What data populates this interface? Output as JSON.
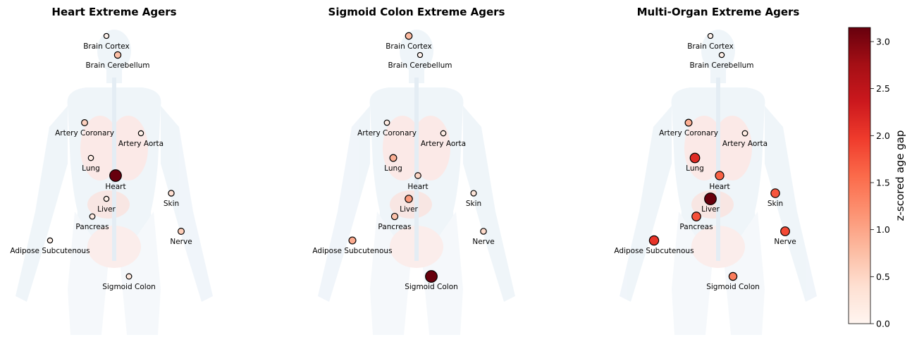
{
  "chart_data": {
    "type": "scatter",
    "colormap": "Reds",
    "color_range": [
      0,
      3.15
    ],
    "colorbar": {
      "label": "z-scored age gap",
      "ticks": [
        "0.0",
        "0.5",
        "1.0",
        "1.5",
        "2.0",
        "2.5",
        "3.0"
      ],
      "tick_values": [
        0,
        0.5,
        1.0,
        1.5,
        2.0,
        2.5,
        3.0
      ]
    },
    "organs": [
      "Brain Cortex",
      "Brain Cerebellum",
      "Artery Coronary",
      "Artery Aorta",
      "Lung",
      "Heart",
      "Skin",
      "Liver",
      "Pancreas",
      "Nerve",
      "Adipose Subcutenous",
      "Sigmoid Colon"
    ],
    "panels": [
      {
        "title": "Heart Extreme Agers",
        "values": [
          0.05,
          0.75,
          0.55,
          0.1,
          0.15,
          3.15,
          0.4,
          0.1,
          0.2,
          0.6,
          0.1,
          0.25
        ]
      },
      {
        "title": "Sigmoid Colon Extreme Agers",
        "values": [
          0.8,
          0.05,
          0.2,
          0.15,
          0.9,
          0.5,
          0.3,
          1.1,
          0.7,
          0.45,
          0.95,
          3.15
        ]
      },
      {
        "title": "Multi-Organ Extreme Agers",
        "values": [
          0.05,
          0.1,
          0.9,
          0.2,
          2.15,
          1.65,
          1.75,
          3.15,
          1.8,
          1.85,
          2.05,
          1.4
        ]
      }
    ]
  }
}
